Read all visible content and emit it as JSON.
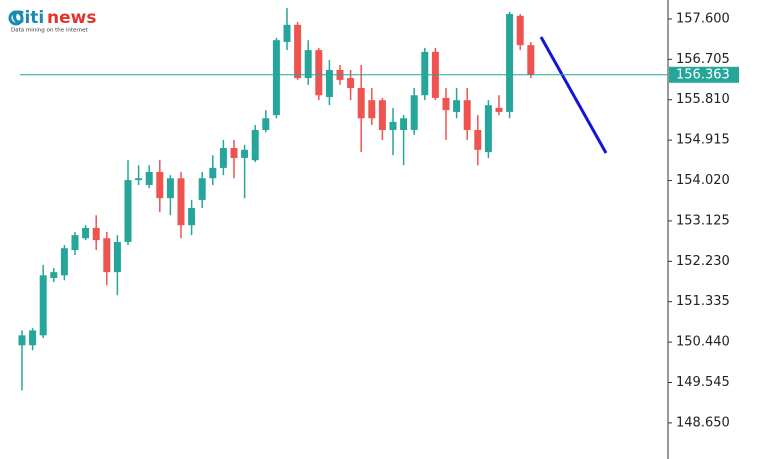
{
  "logo": {
    "brand": "Citi",
    "suffix": "news",
    "tagline": "Data mining on the internet"
  },
  "chart_data": {
    "type": "candlestick",
    "open": [
      150.37,
      150.37,
      150.59,
      151.86,
      151.92,
      152.48,
      152.74,
      152.97,
      152.74,
      151.99,
      152.66,
      154.03,
      153.92,
      154.21,
      153.63,
      154.07,
      153.03,
      153.59,
      154.07,
      154.3,
      154.74,
      154.52,
      154.47,
      155.14,
      155.47,
      157.09,
      157.47,
      156.29,
      156.91,
      155.87,
      156.47,
      156.29,
      156.07,
      155.8,
      155.8,
      155.14,
      155.14,
      155.14,
      155.91,
      156.87,
      155.85,
      155.54,
      155.8,
      155.14,
      154.65,
      155.63,
      155.54,
      157.67,
      157.02
    ],
    "high": [
      150.7,
      150.75,
      152.15,
      152.08,
      152.59,
      152.88,
      153.03,
      153.25,
      152.88,
      152.81,
      154.47,
      154.36,
      154.36,
      154.47,
      154.14,
      154.21,
      153.59,
      154.21,
      154.58,
      154.92,
      154.92,
      154.81,
      155.25,
      155.58,
      157.18,
      157.84,
      157.53,
      157.13,
      156.96,
      156.69,
      156.58,
      156.47,
      156.58,
      156.07,
      155.85,
      155.63,
      155.47,
      156.07,
      156.96,
      156.96,
      156.07,
      156.07,
      156.07,
      155.47,
      155.8,
      155.91,
      157.76,
      157.71,
      157.09
    ],
    "low": [
      149.37,
      150.26,
      150.53,
      151.77,
      151.81,
      152.37,
      152.7,
      152.48,
      151.7,
      151.48,
      152.59,
      153.92,
      153.85,
      153.32,
      153.25,
      152.74,
      152.81,
      153.41,
      153.92,
      154.14,
      154.07,
      153.63,
      154.43,
      155.09,
      155.4,
      156.91,
      156.25,
      156.14,
      155.8,
      155.69,
      156.14,
      155.8,
      154.65,
      155.25,
      154.92,
      154.58,
      154.36,
      155.03,
      155.8,
      155.8,
      154.92,
      155.4,
      154.92,
      154.36,
      154.52,
      155.47,
      155.4,
      156.91,
      156.29
    ],
    "close": [
      150.59,
      150.7,
      151.92,
      151.99,
      152.52,
      152.81,
      152.97,
      152.7,
      151.99,
      152.66,
      154.03,
      154.07,
      154.21,
      153.63,
      154.07,
      153.03,
      153.41,
      154.07,
      154.3,
      154.74,
      154.52,
      154.7,
      155.14,
      155.4,
      157.13,
      157.47,
      156.29,
      156.91,
      155.91,
      156.47,
      156.25,
      156.07,
      155.4,
      155.4,
      155.14,
      155.32,
      155.4,
      155.91,
      156.87,
      155.85,
      155.58,
      155.8,
      155.14,
      154.7,
      155.69,
      155.54,
      157.71,
      157.02,
      156.36
    ],
    "up_color": "#26a69a",
    "down_color": "#ef5350",
    "last_price": 156.363,
    "last_price_color": "#26a69a",
    "ylim": [
      147.85,
      158.02
    ],
    "yticks": [
      {
        "value": 148.65,
        "label": "148.650"
      },
      {
        "value": 149.545,
        "label": "149.545"
      },
      {
        "value": 150.44,
        "label": "150.440"
      },
      {
        "value": 151.335,
        "label": "151.335"
      },
      {
        "value": 152.23,
        "label": "152.230"
      },
      {
        "value": 153.125,
        "label": "153.125"
      },
      {
        "value": 154.02,
        "label": "154.020"
      },
      {
        "value": 154.915,
        "label": "154.915"
      },
      {
        "value": 155.81,
        "label": "155.810"
      },
      {
        "value": 156.705,
        "label": "156.705"
      },
      {
        "value": 157.6,
        "label": "157.600"
      }
    ]
  }
}
